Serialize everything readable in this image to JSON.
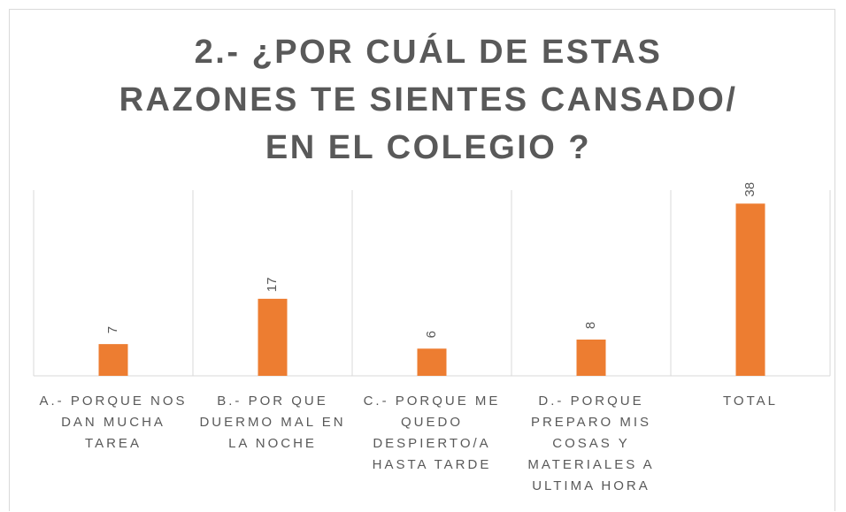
{
  "chart_data": {
    "type": "bar",
    "title": "2.- ¿POR CUÁL DE ESTAS RAZONES TE SIENTES CANSADO/ EN EL COLEGIO ?",
    "categories": [
      "A.- PORQUE NOS DAN MUCHA TAREA",
      "B.- POR QUE DUERMO MAL EN LA NOCHE",
      "C.- PORQUE ME QUEDO DESPIERTO/A HASTA TARDE",
      "D.- PORQUE PREPARO MIS COSAS Y MATERIALES A ULTIMA HORA",
      "TOTAL"
    ],
    "values": [
      7,
      17,
      6,
      8,
      38
    ],
    "color": "#ed7d31",
    "ylim": [
      0,
      40
    ]
  }
}
